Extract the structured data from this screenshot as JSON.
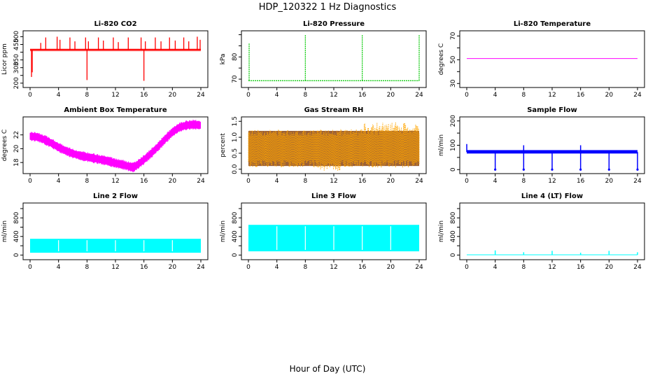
{
  "main_title": "HDP_120322  1 Hz Diagnostics",
  "xlabel_global": "Hour of Day (UTC)",
  "chart_data": [
    {
      "type": "line",
      "title": "Li-820 CO2",
      "ylabel": "Licor ppm",
      "color": "#ff0000",
      "x_ticks": [
        0,
        4,
        8,
        12,
        16,
        20,
        24
      ],
      "xlim": [
        0,
        24
      ],
      "y_ticks": [
        200,
        250,
        300,
        350,
        400,
        450,
        500
      ],
      "y_tick_labels": [
        "200",
        "",
        "300",
        "350",
        "",
        "450",
        "500"
      ],
      "ylim": [
        190,
        520
      ],
      "baseline": 415,
      "band": [
        405,
        425
      ],
      "spikes": [
        [
          0.2,
          240
        ],
        [
          0.3,
          270
        ],
        [
          1.5,
          460
        ],
        [
          2.2,
          495
        ],
        [
          3.8,
          500
        ],
        [
          4.2,
          480
        ],
        [
          5.6,
          495
        ],
        [
          6.3,
          470
        ],
        [
          7.8,
          495
        ],
        [
          8.0,
          220
        ],
        [
          8.2,
          470
        ],
        [
          9.6,
          495
        ],
        [
          10.3,
          475
        ],
        [
          11.7,
          495
        ],
        [
          12.4,
          465
        ],
        [
          13.8,
          495
        ],
        [
          15.6,
          495
        ],
        [
          16.0,
          215
        ],
        [
          16.2,
          470
        ],
        [
          17.6,
          495
        ],
        [
          18.4,
          470
        ],
        [
          19.6,
          495
        ],
        [
          20.4,
          475
        ],
        [
          21.6,
          495
        ],
        [
          22.3,
          470
        ],
        [
          23.5,
          500
        ],
        [
          23.9,
          480
        ]
      ]
    },
    {
      "type": "line",
      "title": "Li-820 Pressure",
      "ylabel": "kPa",
      "color": "#00c800",
      "x_ticks": [
        0,
        4,
        8,
        12,
        16,
        20,
        24
      ],
      "xlim": [
        0,
        24
      ],
      "y_ticks": [
        70,
        75,
        80,
        85,
        90
      ],
      "y_tick_labels": [
        "70",
        "",
        "80",
        "",
        ""
      ],
      "ylim": [
        67.5,
        90.5
      ],
      "baseline": 69.3,
      "spikes": [
        [
          0.1,
          86
        ],
        [
          8.0,
          90
        ],
        [
          16.0,
          90
        ],
        [
          24.0,
          90
        ]
      ]
    },
    {
      "type": "line",
      "title": "Li-820 Temperature",
      "ylabel": "degrees C",
      "color": "#ff00ff",
      "x_ticks": [
        0,
        4,
        8,
        12,
        16,
        20,
        24
      ],
      "xlim": [
        0,
        24
      ],
      "y_ticks": [
        30,
        40,
        50,
        60,
        70
      ],
      "y_tick_labels": [
        "30",
        "",
        "50",
        "",
        "70"
      ],
      "ylim": [
        29,
        72
      ],
      "baseline": 51
    },
    {
      "type": "line",
      "title": "Ambient Box Temperature",
      "ylabel": "degrees C",
      "color": "#ff00ff",
      "x_ticks": [
        0,
        4,
        8,
        12,
        16,
        20,
        24
      ],
      "xlim": [
        0,
        24
      ],
      "y_ticks": [
        18,
        20,
        22
      ],
      "y_tick_labels": [
        "18",
        "20",
        "22"
      ],
      "ylim": [
        16.8,
        24.2
      ],
      "x": [
        0,
        1,
        2,
        3,
        4,
        5,
        6,
        7,
        8,
        9,
        10,
        11,
        12,
        13,
        14,
        14.5,
        15,
        16,
        17,
        18,
        19,
        20,
        21,
        22,
        23,
        24
      ],
      "y": [
        21.8,
        21.7,
        21.3,
        20.8,
        20.2,
        19.7,
        19.3,
        19.0,
        18.8,
        18.6,
        18.4,
        18.2,
        17.9,
        17.7,
        17.4,
        17.3,
        17.6,
        18.4,
        19.3,
        20.3,
        21.4,
        22.4,
        23.1,
        23.4,
        23.5,
        23.4
      ],
      "band_width": 0.5
    },
    {
      "type": "scatter",
      "title": "Gas Stream RH",
      "ylabel": "percent",
      "color": "#ffa500",
      "secondary_color": "#8b4513",
      "x_ticks": [
        0,
        4,
        8,
        12,
        16,
        20,
        24
      ],
      "xlim": [
        0,
        24
      ],
      "y_ticks": [
        0.0,
        0.5,
        1.0,
        1.5
      ],
      "y_tick_labels": [
        "0.0",
        "0.5",
        "1.0",
        "1.5"
      ],
      "ylim": [
        -0.05,
        1.55
      ],
      "band": [
        0.1,
        1.2
      ]
    },
    {
      "type": "line",
      "title": "Sample Flow",
      "ylabel": "ml/min",
      "color": "#0000ff",
      "x_ticks": [
        0,
        4,
        8,
        12,
        16,
        20,
        24
      ],
      "xlim": [
        0,
        24
      ],
      "y_ticks": [
        0,
        50,
        100,
        150,
        200
      ],
      "y_tick_labels": [
        "0",
        "",
        "100",
        "",
        "200"
      ],
      "ylim": [
        -5,
        205
      ],
      "baseline": 72,
      "band": [
        66,
        80
      ],
      "spikes": [
        [
          0.0,
          105
        ],
        [
          4.0,
          0
        ],
        [
          8.0,
          0
        ],
        [
          8.0,
          100
        ],
        [
          12.0,
          0
        ],
        [
          16.0,
          0
        ],
        [
          16.0,
          100
        ],
        [
          20.0,
          0
        ],
        [
          24.0,
          0
        ]
      ]
    },
    {
      "type": "area",
      "title": "Line 2 Flow",
      "ylabel": "ml/min",
      "color": "#00ffff",
      "x_ticks": [
        0,
        4,
        8,
        12,
        16,
        20,
        24
      ],
      "xlim": [
        0,
        24
      ],
      "y_ticks": [
        0,
        200,
        400,
        600,
        800,
        1000
      ],
      "y_tick_labels": [
        "0",
        "",
        "400",
        "",
        "800",
        ""
      ],
      "ylim": [
        -40,
        1060
      ],
      "band": [
        50,
        350
      ],
      "gaps": [
        4,
        8,
        12,
        16,
        20
      ]
    },
    {
      "type": "area",
      "title": "Line 3 Flow",
      "ylabel": "ml/min",
      "color": "#00ffff",
      "x_ticks": [
        0,
        4,
        8,
        12,
        16,
        20,
        24
      ],
      "xlim": [
        0,
        24
      ],
      "y_ticks": [
        0,
        200,
        400,
        600,
        800,
        1000
      ],
      "y_tick_labels": [
        "0",
        "",
        "400",
        "",
        "800",
        ""
      ],
      "ylim": [
        -40,
        1060
      ],
      "band": [
        80,
        650
      ],
      "gaps": [
        4,
        8,
        12,
        16,
        20
      ]
    },
    {
      "type": "line",
      "title": "Line 4 (LT) Flow",
      "ylabel": "ml/min",
      "color": "#00ffff",
      "x_ticks": [
        0,
        4,
        8,
        12,
        16,
        20,
        24
      ],
      "xlim": [
        0,
        24
      ],
      "y_ticks": [
        0,
        200,
        400,
        600,
        800,
        1000
      ],
      "y_tick_labels": [
        "0",
        "",
        "400",
        "",
        "800",
        ""
      ],
      "ylim": [
        -40,
        1060
      ],
      "baseline": 5,
      "spikes": [
        [
          4.0,
          100
        ],
        [
          8.0,
          60
        ],
        [
          12.0,
          90
        ],
        [
          16.0,
          50
        ],
        [
          20.0,
          90
        ],
        [
          24.0,
          60
        ]
      ]
    }
  ]
}
